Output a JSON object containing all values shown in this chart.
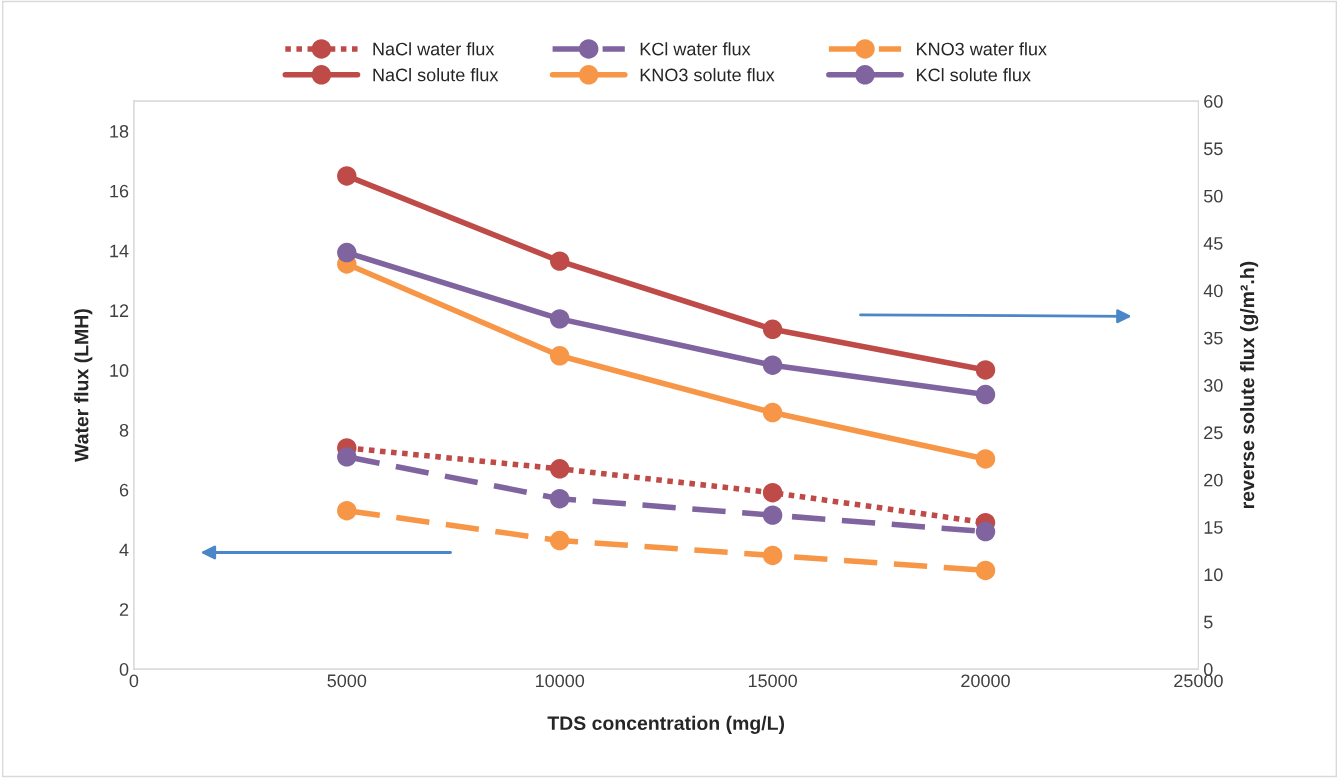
{
  "chart_data": {
    "type": "line",
    "xlabel": "TDS concentration (mg/L)",
    "ylabel": "Water flux (LMH)",
    "y2label": "reverse solute flux (g/m².h)",
    "x": [
      5000,
      10000,
      15000,
      20000
    ],
    "xlim": [
      0,
      25000
    ],
    "xticks": [
      0,
      5000,
      10000,
      15000,
      20000,
      25000
    ],
    "ylim": [
      0,
      19
    ],
    "yticks": [
      0,
      2,
      4,
      6,
      8,
      10,
      12,
      14,
      16,
      18
    ],
    "y2lim": [
      0,
      60
    ],
    "y2ticks": [
      0,
      5,
      10,
      15,
      20,
      25,
      30,
      35,
      40,
      45,
      50,
      55,
      60
    ],
    "legend": "top",
    "marker": "circle",
    "grid": false,
    "series": [
      {
        "name": "NaCl water flux",
        "color": "#be4b48",
        "line_style": "dotted",
        "values": [
          7.4,
          6.7,
          5.9,
          4.9
        ]
      },
      {
        "name": "KCl water flux",
        "color": "#7f64a0",
        "line_style": "dashed",
        "values": [
          7.1,
          5.7,
          5.15,
          4.6
        ]
      },
      {
        "name": "KNO3 water flux",
        "color": "#f79646",
        "line_style": "dashed",
        "values": [
          5.3,
          4.3,
          3.8,
          3.3
        ]
      },
      {
        "name": "NaCl solute flux",
        "color": "#be4b48",
        "line_style": "solid",
        "axis": "y2",
        "values": [
          52.1,
          43.1,
          35.9,
          31.6
        ]
      },
      {
        "name": "KNO3 solute flux",
        "color": "#f79646",
        "line_style": "solid",
        "axis": "y2",
        "values": [
          42.8,
          33.1,
          27.1,
          22.2
        ]
      },
      {
        "name": "KCl solute flux",
        "color": "#7f64a0",
        "line_style": "solid",
        "axis": "y2",
        "values": [
          44.0,
          37.0,
          32.1,
          29.0
        ]
      }
    ]
  }
}
